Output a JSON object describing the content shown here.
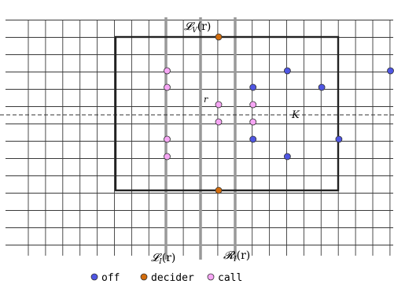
{
  "labels": {
    "l_v": "𝓛",
    "l_v_sub": "V",
    "l_v_arg": "(r)",
    "l_i": "𝓛",
    "l_i_sub": "I",
    "l_i_arg": "(r)",
    "r_i": "𝓡",
    "r_i_sub": "I",
    "r_i_arg": "(r)",
    "k": "K",
    "r_point": "r"
  },
  "legend": [
    {
      "label": "off",
      "color": "#4f56e3"
    },
    {
      "label": "decider",
      "color": "#d36c0c"
    },
    {
      "label": "call",
      "color": "#f7a6f5"
    }
  ],
  "colors": {
    "grid": "#3a3a3a",
    "thick_line": "#999999",
    "box": "#222222",
    "dashed": "#333333",
    "point_stroke": "#333333"
  },
  "grid": {
    "columns": 22,
    "rows": 13,
    "column_step": 1,
    "row_step": 1
  },
  "points": [
    {
      "type": "decider",
      "col": 6,
      "row": 0
    },
    {
      "type": "decider",
      "col": 6,
      "row": 9
    },
    {
      "type": "call",
      "col": 3,
      "row": 2
    },
    {
      "type": "call",
      "col": 3,
      "row": 3
    },
    {
      "type": "call",
      "col": 3,
      "row": 6
    },
    {
      "type": "call",
      "col": 3,
      "row": 7
    },
    {
      "type": "call",
      "col": 6,
      "row": 4
    },
    {
      "type": "call",
      "col": 6,
      "row": 5
    },
    {
      "type": "call",
      "col": 8,
      "row": 4
    },
    {
      "type": "call",
      "col": 8,
      "row": 5
    },
    {
      "type": "off",
      "col": 8,
      "row": 3
    },
    {
      "type": "off",
      "col": 8,
      "row": 6
    },
    {
      "type": "off",
      "col": 10,
      "row": 2
    },
    {
      "type": "off",
      "col": 10,
      "row": 7
    },
    {
      "type": "off",
      "col": 12,
      "row": 3
    },
    {
      "type": "off",
      "col": 13,
      "row": 6
    },
    {
      "type": "off",
      "col": 16,
      "row": 2
    }
  ]
}
